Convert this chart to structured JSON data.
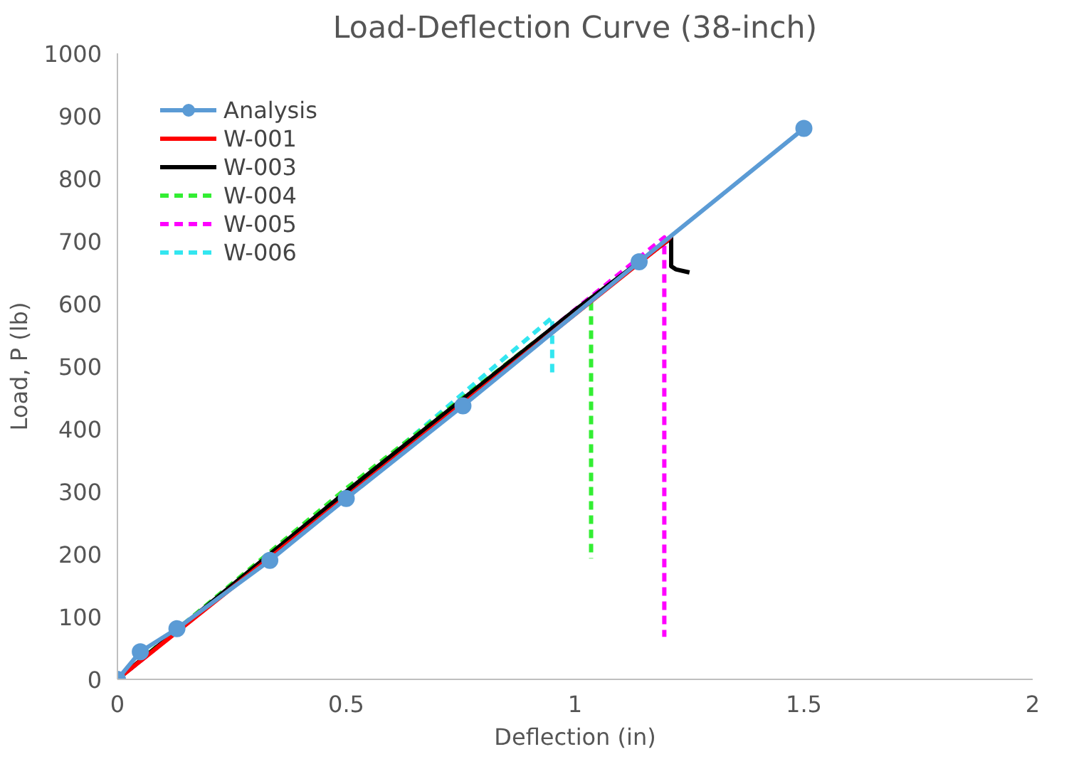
{
  "chart_data": {
    "type": "line",
    "title": "Load-Deflection Curve (38-inch)",
    "xlabel": "Deflection (in)",
    "ylabel": "Load, P (lb)",
    "xlim": [
      0,
      2
    ],
    "xticks": [
      0,
      0.5,
      1,
      1.5,
      2
    ],
    "ylim": [
      0,
      1000
    ],
    "yticks": [
      0,
      100,
      200,
      300,
      400,
      500,
      600,
      700,
      800,
      900,
      1000
    ],
    "grid": false,
    "legend": "top left",
    "series": [
      {
        "name": "Analysis",
        "color": "#5b9bd5",
        "marker": "circle",
        "line_style": "solid",
        "x": [
          0,
          0.05,
          0.13,
          0.333,
          0.5,
          0.755,
          1.14,
          1.5
        ],
        "values": [
          0,
          44,
          81,
          190,
          289,
          437,
          667,
          880
        ]
      },
      {
        "name": "W-001",
        "color": "#ff0000",
        "marker": "none",
        "line_style": "solid",
        "x": [
          0,
          1.2,
          1.21
        ],
        "values": [
          0,
          700,
          708
        ]
      },
      {
        "name": "W-003",
        "color": "#000000",
        "marker": "none",
        "line_style": "solid",
        "x": [
          0,
          0.5,
          1.0,
          1.21,
          1.21,
          1.22,
          1.25
        ],
        "values": [
          0,
          300,
          590,
          705,
          660,
          655,
          650
        ]
      },
      {
        "name": "W-004",
        "color": "#33ee33",
        "marker": "none",
        "line_style": "dashed",
        "x": [
          0,
          0.5,
          1.035,
          1.035
        ],
        "values": [
          0,
          305,
          609,
          193
        ]
      },
      {
        "name": "W-005",
        "color": "#ff00ff",
        "marker": "none",
        "line_style": "dashed",
        "x": [
          0,
          0.5,
          1.195,
          1.195
        ],
        "values": [
          0,
          295,
          706,
          68
        ]
      },
      {
        "name": "W-006",
        "color": "#33e6f0",
        "marker": "none",
        "line_style": "dashed",
        "x": [
          0,
          0.5,
          0.95,
          0.95
        ],
        "values": [
          0,
          298,
          578,
          487
        ]
      }
    ]
  }
}
